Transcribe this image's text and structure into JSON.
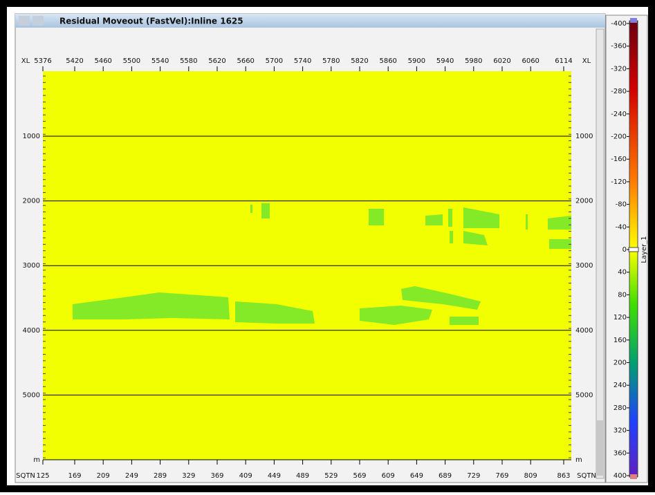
{
  "window": {
    "title": "Residual Moveout (FastVel):Inline 1625"
  },
  "top_axis": {
    "labels": [
      "XL",
      "5376",
      "5420",
      "5460",
      "5500",
      "5540",
      "5580",
      "5620",
      "5660",
      "5700",
      "5740",
      "5780",
      "5820",
      "5860",
      "5900",
      "5940",
      "5980",
      "6020",
      "6060",
      "6114",
      "XL"
    ]
  },
  "bottom_axis": {
    "labels": [
      "SQTN",
      "125",
      "169",
      "209",
      "249",
      "289",
      "329",
      "369",
      "409",
      "449",
      "489",
      "529",
      "569",
      "609",
      "649",
      "689",
      "729",
      "769",
      "809",
      "863",
      "SQTN"
    ]
  },
  "depth_axis": {
    "labels": [
      "1000",
      "2000",
      "3000",
      "4000",
      "5000",
      "m"
    ]
  },
  "colorbar": {
    "labels": [
      "-400",
      "-360",
      "-320",
      "-280",
      "-240",
      "-200",
      "-160",
      "-120",
      "-80",
      "-40",
      "0",
      "40",
      "80",
      "120",
      "160",
      "200",
      "240",
      "280",
      "320",
      "360",
      "400"
    ],
    "layer": "Layer_1"
  }
}
